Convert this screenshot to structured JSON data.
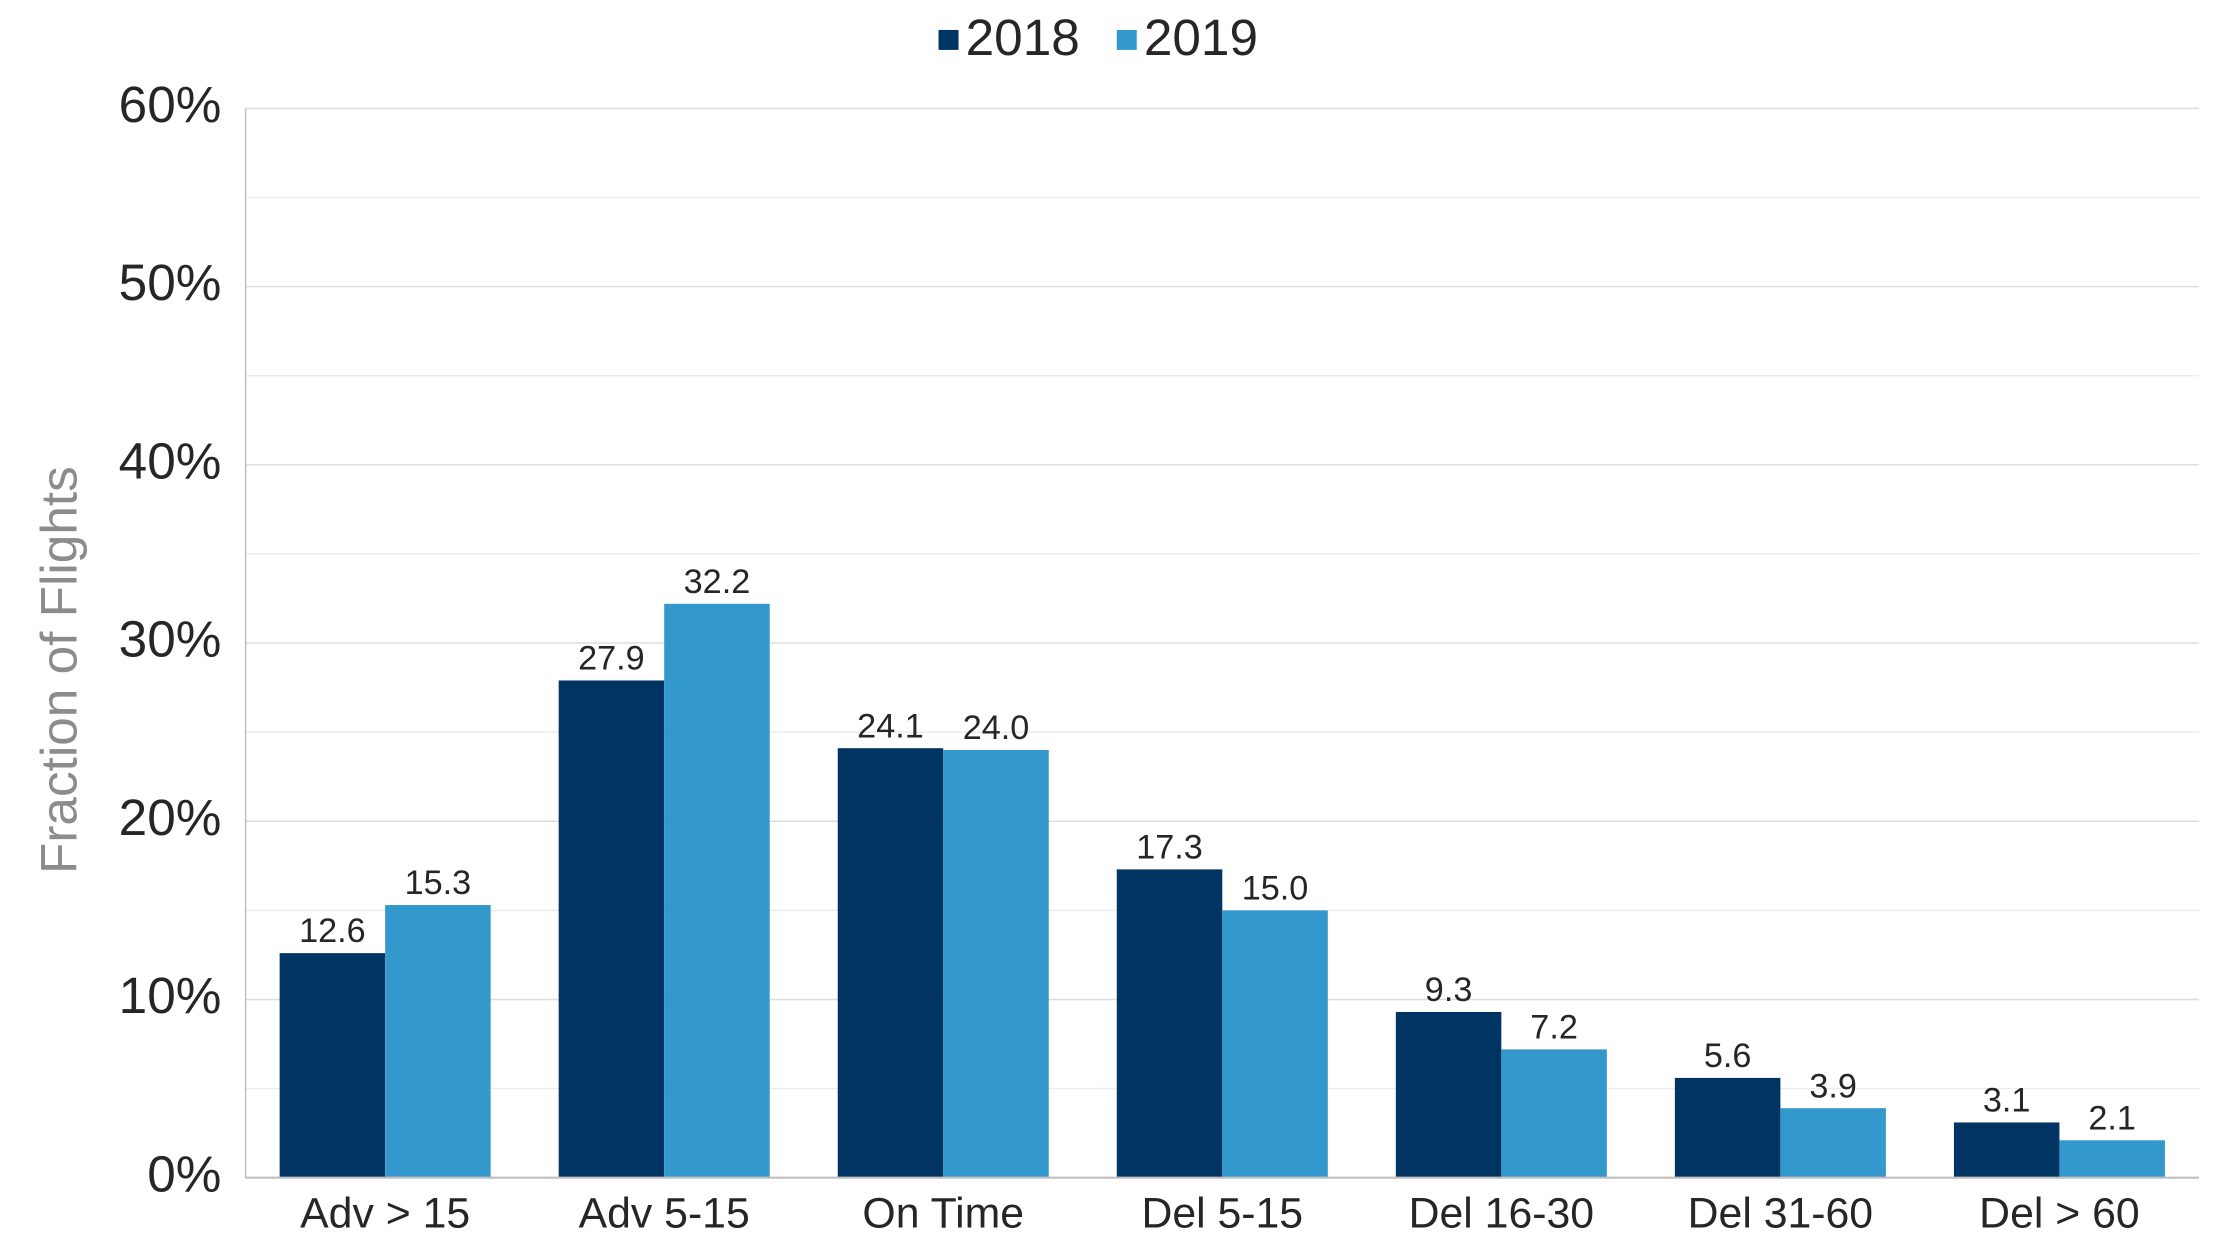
{
  "chart_data": {
    "type": "bar",
    "y_label": "Fraction of Flights",
    "categories": [
      "Adv > 15",
      "Adv 5-15",
      "On Time",
      "Del 5-15",
      "Del 16-30",
      "Del 31-60",
      "Del > 60"
    ],
    "series": [
      {
        "name": "2018",
        "color": "#003462",
        "values": [
          12.6,
          27.9,
          24.1,
          17.3,
          9.3,
          5.6,
          3.1
        ],
        "value_labels": [
          "12.6",
          "27.9",
          "24.1",
          "17.3",
          "9.3",
          "5.6",
          "3.1"
        ]
      },
      {
        "name": "2019",
        "color": "#3399cc",
        "values": [
          15.3,
          32.2,
          24.0,
          15.0,
          7.2,
          3.9,
          2.1
        ],
        "value_labels": [
          "15.3",
          "32.2",
          "24.0",
          "15.0",
          "7.2",
          "3.9",
          "2.1"
        ]
      }
    ],
    "ylim": [
      0,
      60
    ],
    "yticks": [
      {
        "value": 0,
        "label": "0%"
      },
      {
        "value": 10,
        "label": "10%"
      },
      {
        "value": 20,
        "label": "20%"
      },
      {
        "value": 30,
        "label": "30%"
      },
      {
        "value": 40,
        "label": "40%"
      },
      {
        "value": 50,
        "label": "50%"
      },
      {
        "value": 60,
        "label": "60%"
      }
    ],
    "yticks_minor": [
      5,
      15,
      25,
      35,
      45,
      55
    ],
    "grid": true,
    "legend": "top"
  }
}
